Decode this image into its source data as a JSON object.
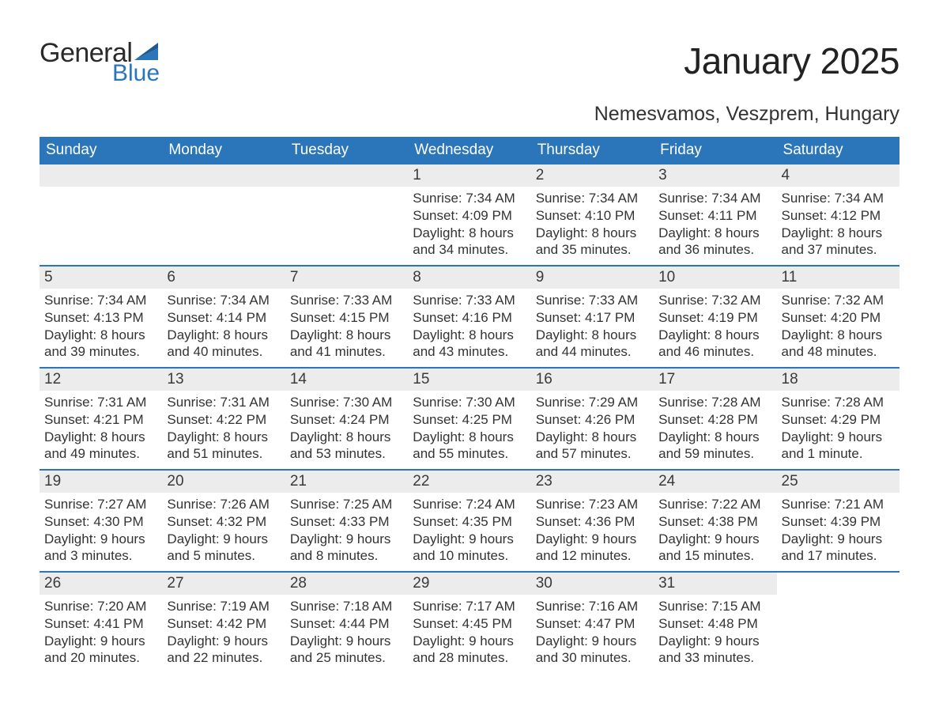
{
  "logo": {
    "word1": "General",
    "word2": "Blue",
    "brand_color": "#2b76bb",
    "text_color": "#2a2a2a"
  },
  "title": "January 2025",
  "location": "Nemesvamos, Veszprem, Hungary",
  "calendar": {
    "header_bg": "#2b76bb",
    "header_fg": "#ffffff",
    "daynum_bg": "#ececec",
    "divider_color": "#2b76bb",
    "body_fontsize": 17,
    "header_fontsize": 19,
    "title_fontsize": 46,
    "location_fontsize": 25,
    "days_of_week": [
      "Sunday",
      "Monday",
      "Tuesday",
      "Wednesday",
      "Thursday",
      "Friday",
      "Saturday"
    ],
    "weeks": [
      [
        null,
        null,
        null,
        {
          "n": "1",
          "sunrise": "Sunrise: 7:34 AM",
          "sunset": "Sunset: 4:09 PM",
          "daylight": "Daylight: 8 hours and 34 minutes."
        },
        {
          "n": "2",
          "sunrise": "Sunrise: 7:34 AM",
          "sunset": "Sunset: 4:10 PM",
          "daylight": "Daylight: 8 hours and 35 minutes."
        },
        {
          "n": "3",
          "sunrise": "Sunrise: 7:34 AM",
          "sunset": "Sunset: 4:11 PM",
          "daylight": "Daylight: 8 hours and 36 minutes."
        },
        {
          "n": "4",
          "sunrise": "Sunrise: 7:34 AM",
          "sunset": "Sunset: 4:12 PM",
          "daylight": "Daylight: 8 hours and 37 minutes."
        }
      ],
      [
        {
          "n": "5",
          "sunrise": "Sunrise: 7:34 AM",
          "sunset": "Sunset: 4:13 PM",
          "daylight": "Daylight: 8 hours and 39 minutes."
        },
        {
          "n": "6",
          "sunrise": "Sunrise: 7:34 AM",
          "sunset": "Sunset: 4:14 PM",
          "daylight": "Daylight: 8 hours and 40 minutes."
        },
        {
          "n": "7",
          "sunrise": "Sunrise: 7:33 AM",
          "sunset": "Sunset: 4:15 PM",
          "daylight": "Daylight: 8 hours and 41 minutes."
        },
        {
          "n": "8",
          "sunrise": "Sunrise: 7:33 AM",
          "sunset": "Sunset: 4:16 PM",
          "daylight": "Daylight: 8 hours and 43 minutes."
        },
        {
          "n": "9",
          "sunrise": "Sunrise: 7:33 AM",
          "sunset": "Sunset: 4:17 PM",
          "daylight": "Daylight: 8 hours and 44 minutes."
        },
        {
          "n": "10",
          "sunrise": "Sunrise: 7:32 AM",
          "sunset": "Sunset: 4:19 PM",
          "daylight": "Daylight: 8 hours and 46 minutes."
        },
        {
          "n": "11",
          "sunrise": "Sunrise: 7:32 AM",
          "sunset": "Sunset: 4:20 PM",
          "daylight": "Daylight: 8 hours and 48 minutes."
        }
      ],
      [
        {
          "n": "12",
          "sunrise": "Sunrise: 7:31 AM",
          "sunset": "Sunset: 4:21 PM",
          "daylight": "Daylight: 8 hours and 49 minutes."
        },
        {
          "n": "13",
          "sunrise": "Sunrise: 7:31 AM",
          "sunset": "Sunset: 4:22 PM",
          "daylight": "Daylight: 8 hours and 51 minutes."
        },
        {
          "n": "14",
          "sunrise": "Sunrise: 7:30 AM",
          "sunset": "Sunset: 4:24 PM",
          "daylight": "Daylight: 8 hours and 53 minutes."
        },
        {
          "n": "15",
          "sunrise": "Sunrise: 7:30 AM",
          "sunset": "Sunset: 4:25 PM",
          "daylight": "Daylight: 8 hours and 55 minutes."
        },
        {
          "n": "16",
          "sunrise": "Sunrise: 7:29 AM",
          "sunset": "Sunset: 4:26 PM",
          "daylight": "Daylight: 8 hours and 57 minutes."
        },
        {
          "n": "17",
          "sunrise": "Sunrise: 7:28 AM",
          "sunset": "Sunset: 4:28 PM",
          "daylight": "Daylight: 8 hours and 59 minutes."
        },
        {
          "n": "18",
          "sunrise": "Sunrise: 7:28 AM",
          "sunset": "Sunset: 4:29 PM",
          "daylight": "Daylight: 9 hours and 1 minute."
        }
      ],
      [
        {
          "n": "19",
          "sunrise": "Sunrise: 7:27 AM",
          "sunset": "Sunset: 4:30 PM",
          "daylight": "Daylight: 9 hours and 3 minutes."
        },
        {
          "n": "20",
          "sunrise": "Sunrise: 7:26 AM",
          "sunset": "Sunset: 4:32 PM",
          "daylight": "Daylight: 9 hours and 5 minutes."
        },
        {
          "n": "21",
          "sunrise": "Sunrise: 7:25 AM",
          "sunset": "Sunset: 4:33 PM",
          "daylight": "Daylight: 9 hours and 8 minutes."
        },
        {
          "n": "22",
          "sunrise": "Sunrise: 7:24 AM",
          "sunset": "Sunset: 4:35 PM",
          "daylight": "Daylight: 9 hours and 10 minutes."
        },
        {
          "n": "23",
          "sunrise": "Sunrise: 7:23 AM",
          "sunset": "Sunset: 4:36 PM",
          "daylight": "Daylight: 9 hours and 12 minutes."
        },
        {
          "n": "24",
          "sunrise": "Sunrise: 7:22 AM",
          "sunset": "Sunset: 4:38 PM",
          "daylight": "Daylight: 9 hours and 15 minutes."
        },
        {
          "n": "25",
          "sunrise": "Sunrise: 7:21 AM",
          "sunset": "Sunset: 4:39 PM",
          "daylight": "Daylight: 9 hours and 17 minutes."
        }
      ],
      [
        {
          "n": "26",
          "sunrise": "Sunrise: 7:20 AM",
          "sunset": "Sunset: 4:41 PM",
          "daylight": "Daylight: 9 hours and 20 minutes."
        },
        {
          "n": "27",
          "sunrise": "Sunrise: 7:19 AM",
          "sunset": "Sunset: 4:42 PM",
          "daylight": "Daylight: 9 hours and 22 minutes."
        },
        {
          "n": "28",
          "sunrise": "Sunrise: 7:18 AM",
          "sunset": "Sunset: 4:44 PM",
          "daylight": "Daylight: 9 hours and 25 minutes."
        },
        {
          "n": "29",
          "sunrise": "Sunrise: 7:17 AM",
          "sunset": "Sunset: 4:45 PM",
          "daylight": "Daylight: 9 hours and 28 minutes."
        },
        {
          "n": "30",
          "sunrise": "Sunrise: 7:16 AM",
          "sunset": "Sunset: 4:47 PM",
          "daylight": "Daylight: 9 hours and 30 minutes."
        },
        {
          "n": "31",
          "sunrise": "Sunrise: 7:15 AM",
          "sunset": "Sunset: 4:48 PM",
          "daylight": "Daylight: 9 hours and 33 minutes."
        },
        null
      ]
    ]
  }
}
